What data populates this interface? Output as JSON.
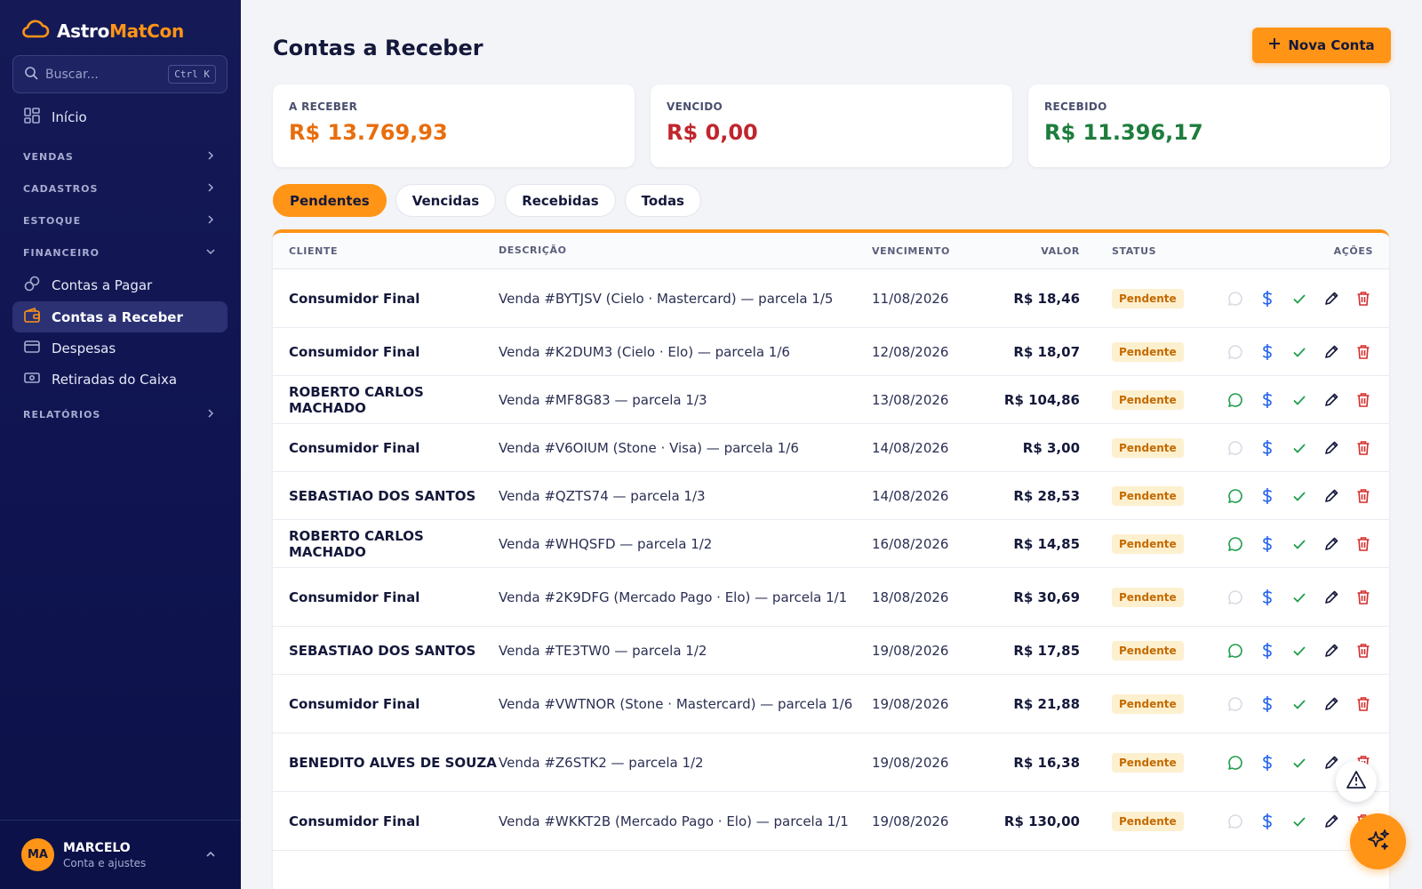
{
  "sidebar": {
    "brand_part1": "Astro",
    "brand_part2": "MatCon",
    "search_placeholder": "Buscar...",
    "search_shortcut": "Ctrl K",
    "home": "Início",
    "sections": {
      "vendas": "VENDAS",
      "cadastros": "CADASTROS",
      "estoque": "ESTOQUE",
      "financeiro": "FINANCEIRO",
      "relatorios": "RELATÓRIOS"
    },
    "fin_items": [
      "Contas a Pagar",
      "Contas a Receber",
      "Despesas",
      "Retiradas do Caixa"
    ],
    "user": {
      "initials": "MA",
      "name": "MARCELO",
      "sub": "Conta e ajustes"
    }
  },
  "page": {
    "title": "Contas a Receber",
    "new_button": "Nova Conta"
  },
  "cards": [
    {
      "label": "A RECEBER",
      "value": "R$ 13.769,93",
      "color": "#e86d0c"
    },
    {
      "label": "VENCIDO",
      "value": "R$ 0,00",
      "color": "#c0262d"
    },
    {
      "label": "RECEBIDO",
      "value": "R$ 11.396,17",
      "color": "#1e7d3d"
    }
  ],
  "tabs": [
    "Pendentes",
    "Vencidas",
    "Recebidas",
    "Todas"
  ],
  "table": {
    "headers": {
      "cliente": "CLIENTE",
      "descricao": "DESCRIÇÃO",
      "vencimento": "VENCIMENTO",
      "valor": "VALOR",
      "status": "STATUS",
      "acoes": "AÇÕES"
    },
    "rows": [
      {
        "cliente": "Consumidor Final",
        "descricao": "Venda #BYTJSV (Cielo · Mastercard) — parcela 1/5",
        "vencimento": "11/08/2026",
        "valor": "R$ 18,46",
        "status": "Pendente",
        "whatsapp": false
      },
      {
        "cliente": "Consumidor Final",
        "descricao": "Venda #K2DUM3 (Cielo · Elo) — parcela 1/6",
        "vencimento": "12/08/2026",
        "valor": "R$ 18,07",
        "status": "Pendente",
        "whatsapp": false
      },
      {
        "cliente": "ROBERTO CARLOS MACHADO",
        "descricao": "Venda #MF8G83 — parcela 1/3",
        "vencimento": "13/08/2026",
        "valor": "R$ 104,86",
        "status": "Pendente",
        "whatsapp": true
      },
      {
        "cliente": "Consumidor Final",
        "descricao": "Venda #V6OIUM (Stone · Visa) — parcela 1/6",
        "vencimento": "14/08/2026",
        "valor": "R$ 3,00",
        "status": "Pendente",
        "whatsapp": false
      },
      {
        "cliente": "SEBASTIAO DOS SANTOS",
        "descricao": "Venda #QZTS74 — parcela 1/3",
        "vencimento": "14/08/2026",
        "valor": "R$ 28,53",
        "status": "Pendente",
        "whatsapp": true
      },
      {
        "cliente": "ROBERTO CARLOS MACHADO",
        "descricao": "Venda #WHQSFD — parcela 1/2",
        "vencimento": "16/08/2026",
        "valor": "R$ 14,85",
        "status": "Pendente",
        "whatsapp": true
      },
      {
        "cliente": "Consumidor Final",
        "descricao": "Venda #2K9DFG (Mercado Pago · Elo) — parcela 1/1",
        "vencimento": "18/08/2026",
        "valor": "R$ 30,69",
        "status": "Pendente",
        "whatsapp": false
      },
      {
        "cliente": "SEBASTIAO DOS SANTOS",
        "descricao": "Venda #TE3TW0 — parcela 1/2",
        "vencimento": "19/08/2026",
        "valor": "R$ 17,85",
        "status": "Pendente",
        "whatsapp": true
      },
      {
        "cliente": "Consumidor Final",
        "descricao": "Venda #VWTNOR (Stone · Mastercard) — parcela 1/6",
        "vencimento": "19/08/2026",
        "valor": "R$ 21,88",
        "status": "Pendente",
        "whatsapp": false
      },
      {
        "cliente": "BENEDITO ALVES DE SOUZA",
        "descricao": "Venda #Z6STK2 — parcela 1/2",
        "vencimento": "19/08/2026",
        "valor": "R$ 16,38",
        "status": "Pendente",
        "whatsapp": true
      },
      {
        "cliente": "Consumidor Final",
        "descricao": "Venda #WKKT2B (Mercado Pago · Elo) — parcela 1/1",
        "vencimento": "19/08/2026",
        "valor": "R$ 130,00",
        "status": "Pendente",
        "whatsapp": false
      }
    ]
  },
  "colors": {
    "accent": "#ff9416",
    "sidebar_bg": "#131855",
    "whatsapp": "#1e9d4a",
    "dollar": "#2563eb",
    "check": "#1e9d4a",
    "delete": "#d32f2f"
  }
}
